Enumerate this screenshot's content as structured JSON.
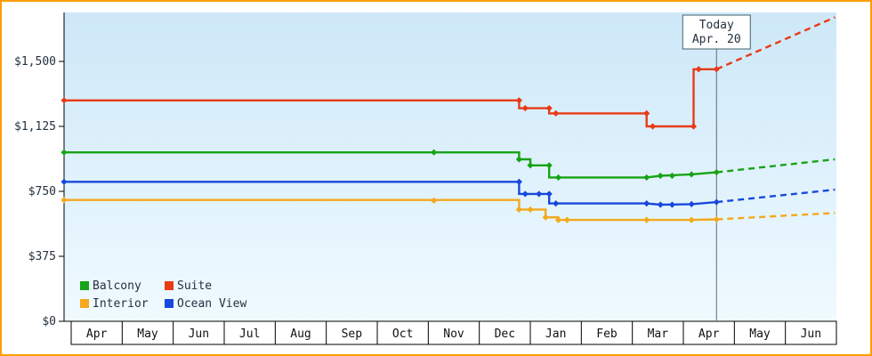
{
  "colors": {
    "frame_border": "#ff9d00",
    "plot_bg_top": "#cde8f8",
    "plot_bg_bottom": "#f0faff",
    "axis": "#000000",
    "text": "#24313f",
    "month_text": "#111111",
    "today_line": "#5a6b77",
    "today_box_border": "#44606e"
  },
  "chart_data": {
    "type": "line",
    "title": "",
    "xlabel": "",
    "ylabel": "",
    "x_units": "months from first tick (Apr), step lines of cabin price history with dashed forecast after today",
    "x_axis": {
      "tick_labels": [
        "Apr",
        "May",
        "Jun",
        "Jul",
        "Aug",
        "Sep",
        "Oct",
        "Nov",
        "Dec",
        "Jan",
        "Feb",
        "Mar",
        "Apr",
        "May",
        "Jun"
      ]
    },
    "y_axis": {
      "ticks": [
        0,
        375,
        750,
        1125,
        1500
      ],
      "tick_labels": [
        "$0",
        "$375",
        "$750",
        "$1,125",
        "$1,500"
      ],
      "ylim": [
        0,
        1790
      ]
    },
    "grid": false,
    "legend_position": "bottom-left",
    "today_marker": {
      "line1": "Today",
      "line2": "Apr. 20",
      "x_months": 12.65
    },
    "legend_rows": [
      [
        "Balcony",
        "Suite"
      ],
      [
        "Interior",
        "Ocean View"
      ]
    ],
    "series": [
      {
        "name": "Interior",
        "color": "#f3a81d",
        "solid": [
          [
            -0.14,
            700
          ],
          [
            8.78,
            700
          ],
          [
            8.78,
            645
          ],
          [
            9.3,
            645
          ],
          [
            9.3,
            600
          ],
          [
            9.55,
            600
          ],
          [
            9.55,
            585
          ],
          [
            12.16,
            585
          ],
          [
            12.65,
            588
          ]
        ],
        "dashed": [
          [
            12.65,
            588
          ],
          [
            14.97,
            625
          ]
        ],
        "markers": [
          [
            -0.14,
            700
          ],
          [
            7.11,
            697
          ],
          [
            8.78,
            645
          ],
          [
            9.0,
            645
          ],
          [
            9.3,
            600
          ],
          [
            9.55,
            585
          ],
          [
            9.72,
            585
          ],
          [
            11.28,
            585
          ],
          [
            12.16,
            585
          ],
          [
            12.65,
            588
          ]
        ]
      },
      {
        "name": "Ocean View",
        "color": "#1848dd",
        "solid": [
          [
            -0.14,
            805
          ],
          [
            8.78,
            805
          ],
          [
            8.78,
            735
          ],
          [
            9.37,
            735
          ],
          [
            9.37,
            680
          ],
          [
            11.28,
            680
          ],
          [
            11.55,
            673
          ],
          [
            12.16,
            676
          ],
          [
            12.65,
            688
          ]
        ],
        "dashed": [
          [
            12.65,
            688
          ],
          [
            14.97,
            760
          ]
        ],
        "markers": [
          [
            -0.14,
            805
          ],
          [
            8.78,
            805
          ],
          [
            8.9,
            735
          ],
          [
            9.17,
            735
          ],
          [
            9.37,
            735
          ],
          [
            9.5,
            680
          ],
          [
            11.28,
            680
          ],
          [
            11.55,
            673
          ],
          [
            11.78,
            673
          ],
          [
            12.16,
            676
          ],
          [
            12.65,
            688
          ]
        ]
      },
      {
        "name": "Balcony",
        "color": "#17a317",
        "solid": [
          [
            -0.14,
            975
          ],
          [
            8.78,
            975
          ],
          [
            8.78,
            935
          ],
          [
            9.0,
            935
          ],
          [
            9.0,
            900
          ],
          [
            9.37,
            900
          ],
          [
            9.37,
            830
          ],
          [
            11.28,
            830
          ],
          [
            11.55,
            840
          ],
          [
            12.16,
            848
          ],
          [
            12.65,
            860
          ]
        ],
        "dashed": [
          [
            12.65,
            860
          ],
          [
            14.97,
            935
          ]
        ],
        "markers": [
          [
            -0.14,
            975
          ],
          [
            7.11,
            975
          ],
          [
            8.78,
            935
          ],
          [
            9.0,
            900
          ],
          [
            9.37,
            900
          ],
          [
            9.55,
            830
          ],
          [
            11.28,
            830
          ],
          [
            11.55,
            840
          ],
          [
            11.78,
            840
          ],
          [
            12.16,
            848
          ],
          [
            12.65,
            860
          ]
        ]
      },
      {
        "name": "Suite",
        "color": "#e83a17",
        "solid": [
          [
            -0.14,
            1275
          ],
          [
            8.78,
            1275
          ],
          [
            8.78,
            1230
          ],
          [
            9.37,
            1230
          ],
          [
            9.37,
            1200
          ],
          [
            11.28,
            1200
          ],
          [
            11.28,
            1125
          ],
          [
            12.2,
            1125
          ],
          [
            12.2,
            1455
          ],
          [
            12.65,
            1455
          ]
        ],
        "dashed": [
          [
            12.65,
            1455
          ],
          [
            14.97,
            1755
          ]
        ],
        "markers": [
          [
            -0.14,
            1275
          ],
          [
            8.78,
            1275
          ],
          [
            8.9,
            1230
          ],
          [
            9.37,
            1230
          ],
          [
            9.5,
            1200
          ],
          [
            11.28,
            1200
          ],
          [
            11.4,
            1125
          ],
          [
            12.2,
            1125
          ],
          [
            12.3,
            1455
          ],
          [
            12.65,
            1455
          ]
        ]
      }
    ]
  }
}
